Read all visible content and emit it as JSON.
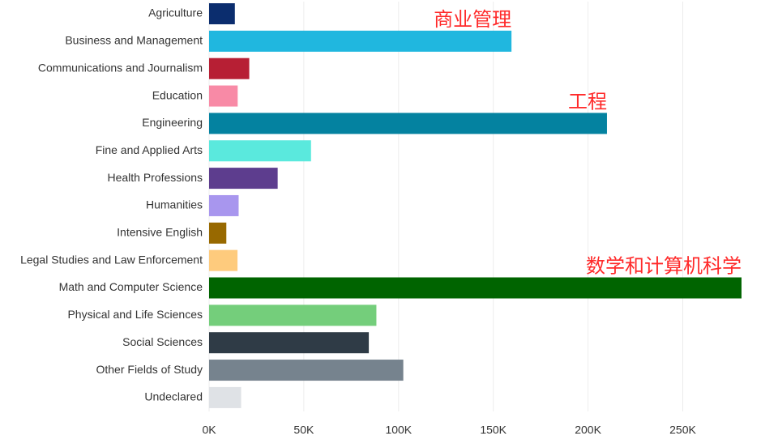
{
  "chart_data": {
    "type": "bar",
    "orientation": "horizontal",
    "categories": [
      "Agriculture",
      "Business and Management",
      "Communications and Journalism",
      "Education",
      "Engineering",
      "Fine and Applied Arts",
      "Health Professions",
      "Humanities",
      "Intensive English",
      "Legal Studies and Law Enforcement",
      "Math and Computer Science",
      "Physical and Life Sciences",
      "Social Sciences",
      "Other Fields of Study",
      "Undeclared"
    ],
    "values": [
      13600,
      159600,
      21200,
      15100,
      210000,
      53800,
      36200,
      15600,
      9100,
      15000,
      281000,
      88300,
      84300,
      102500,
      16900
    ],
    "colors": [
      "#0b2d6e",
      "#20b7df",
      "#b71f34",
      "#f88aa6",
      "#0482a0",
      "#5ae9dd",
      "#5d3d8e",
      "#a896ee",
      "#986900",
      "#fecb7d",
      "#006400",
      "#74ce7b",
      "#2f3b46",
      "#76838e",
      "#dfe2e6"
    ],
    "x_ticks": [
      "0K",
      "50K",
      "100K",
      "150K",
      "200K",
      "250K"
    ],
    "x_tick_values": [
      0,
      50000,
      100000,
      150000,
      200000,
      250000
    ],
    "xlim": [
      0,
      290000
    ],
    "grid": true,
    "annotations": [
      {
        "text": "商业管理",
        "category": "Business and Management"
      },
      {
        "text": "工程",
        "category": "Engineering"
      },
      {
        "text": "数学和计算机科学",
        "category": "Math and Computer Science"
      }
    ]
  }
}
